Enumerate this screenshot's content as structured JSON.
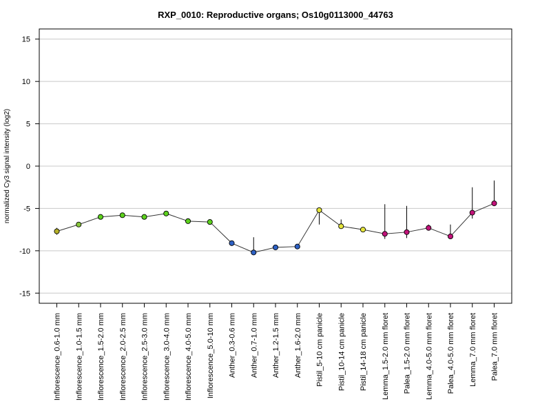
{
  "chart_data": {
    "type": "line",
    "title": "RXP_0010: Reproductive organs; Os10g0113000_44763",
    "xlabel": "",
    "ylabel": "normalized Cy3 signal intensity (log2)",
    "ylim": [
      -16.2,
      16.2
    ],
    "yticks": [
      15,
      10,
      5,
      0,
      -5,
      -10,
      -15
    ],
    "grid": true,
    "categories": [
      "Inflorescence_0.6-1.0 mm",
      "Inflorescence_1.0-1.5 mm",
      "Inflorescence_1.5-2.0 mm",
      "Inflorescence_2.0-2.5 mm",
      "Inflorescence_2.5-3.0 mm",
      "Inflorescence_3.0-4.0 mm",
      "Inflorescence_4.0-5.0 mm",
      "Inflorescence_5.0-10 mm",
      "Anther_0.3-0.6 mm",
      "Anther_0.7-1.0 mm",
      "Anther_1.2-1.5 mm",
      "Anther_1.6-2.0 mm",
      "Pistil_5-10 cm panicle",
      "Pistil_10-14 cm panicle",
      "Pistil_14-18 cm panicle",
      "Lemma_1.5-2.0 mm floret",
      "Palea_1.5-2.0 mm floret",
      "Lemma_4.0-5.0 mm floret",
      "Palea_4.0-5.0 mm floret",
      "Lemma_7.0 mm floret",
      "Palea_7.0 mm floret"
    ],
    "series": [
      {
        "values": [
          -7.7,
          -6.9,
          -6.0,
          -5.8,
          -6.0,
          -5.6,
          -6.5,
          -6.6,
          -9.1,
          -10.2,
          -9.6,
          -9.5,
          -5.2,
          -7.1,
          -7.5,
          -8.0,
          -7.8,
          -7.3,
          -8.3,
          -5.5,
          -4.4
        ],
        "error_low": [
          -8.1,
          -7.1,
          -6.2,
          -6.0,
          -6.2,
          -5.8,
          -6.7,
          -6.8,
          -9.4,
          -10.5,
          -9.7,
          -9.6,
          -6.9,
          -7.3,
          -7.6,
          -8.6,
          -8.5,
          -7.5,
          -8.6,
          -6.2,
          -4.6
        ],
        "error_high": [
          -7.3,
          -6.7,
          -5.8,
          -5.6,
          -5.8,
          -5.4,
          -6.3,
          -6.4,
          -8.8,
          -8.4,
          -9.4,
          -9.4,
          -4.9,
          -6.3,
          -7.3,
          -4.5,
          -4.7,
          -6.9,
          -6.9,
          -2.5,
          -1.7
        ],
        "colors": [
          "#B5B028",
          "#87C63B",
          "#5CD11D",
          "#5CD11D",
          "#5CD11D",
          "#5CD11D",
          "#5CD11D",
          "#5CD11D",
          "#2E61C4",
          "#2E61C4",
          "#2E61C4",
          "#2E61C4",
          "#E5E53C",
          "#E5E53C",
          "#E5E53C",
          "#C2137A",
          "#C2137A",
          "#C2137A",
          "#C2137A",
          "#C2137A",
          "#C2137A"
        ]
      }
    ]
  }
}
